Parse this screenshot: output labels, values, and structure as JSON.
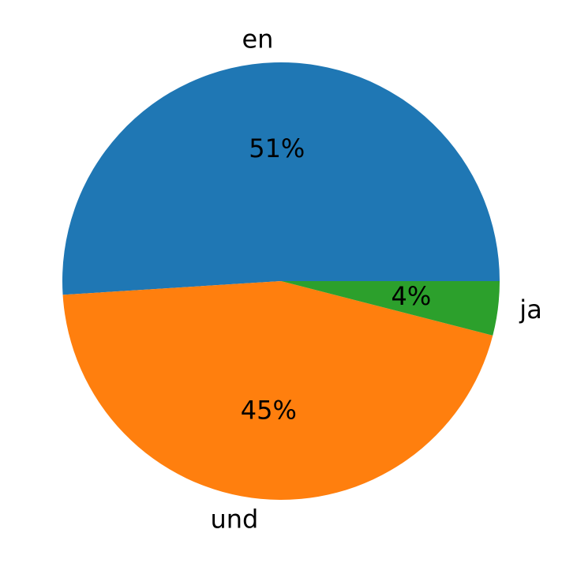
{
  "chart_data": {
    "type": "pie",
    "categories": [
      "en",
      "und",
      "ja"
    ],
    "values": [
      51,
      45,
      4
    ],
    "value_labels": [
      "51%",
      "45%",
      "4%"
    ],
    "colors": [
      "#1f77b4",
      "#ff7f0e",
      "#2ca02c"
    ]
  }
}
